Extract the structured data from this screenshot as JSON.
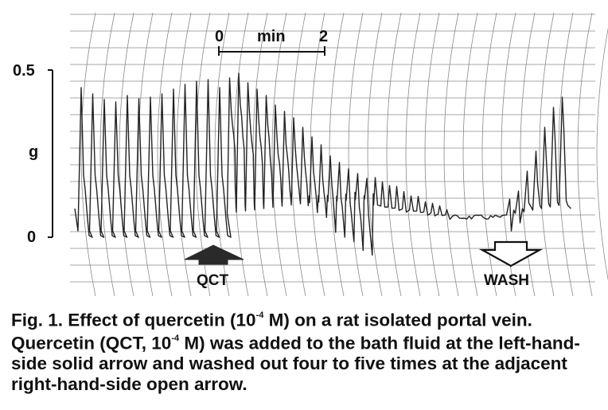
{
  "figure": {
    "y_axis": {
      "top_label": "0.5",
      "unit_label": "g",
      "bottom_label": "0"
    },
    "time_scale": {
      "start": "0",
      "unit": "min",
      "end": "2"
    },
    "arrows": {
      "drug_label": "QCT",
      "wash_label": "WASH"
    }
  },
  "caption": {
    "part1": "Fig. 1. Effect of quercetin (10",
    "exp1": "-4",
    "part2": " M) on a rat isolated portal vein. Quercetin (QCT, 10",
    "exp2": "-4",
    "part3": " M) was added to the bath fluid at the left-hand-side solid arrow and washed out four to five times at the adjacent right-hand-side open arrow."
  },
  "colors": {
    "trace": "#222222",
    "grid": "#8a8a8a",
    "axis": "#111111"
  }
}
